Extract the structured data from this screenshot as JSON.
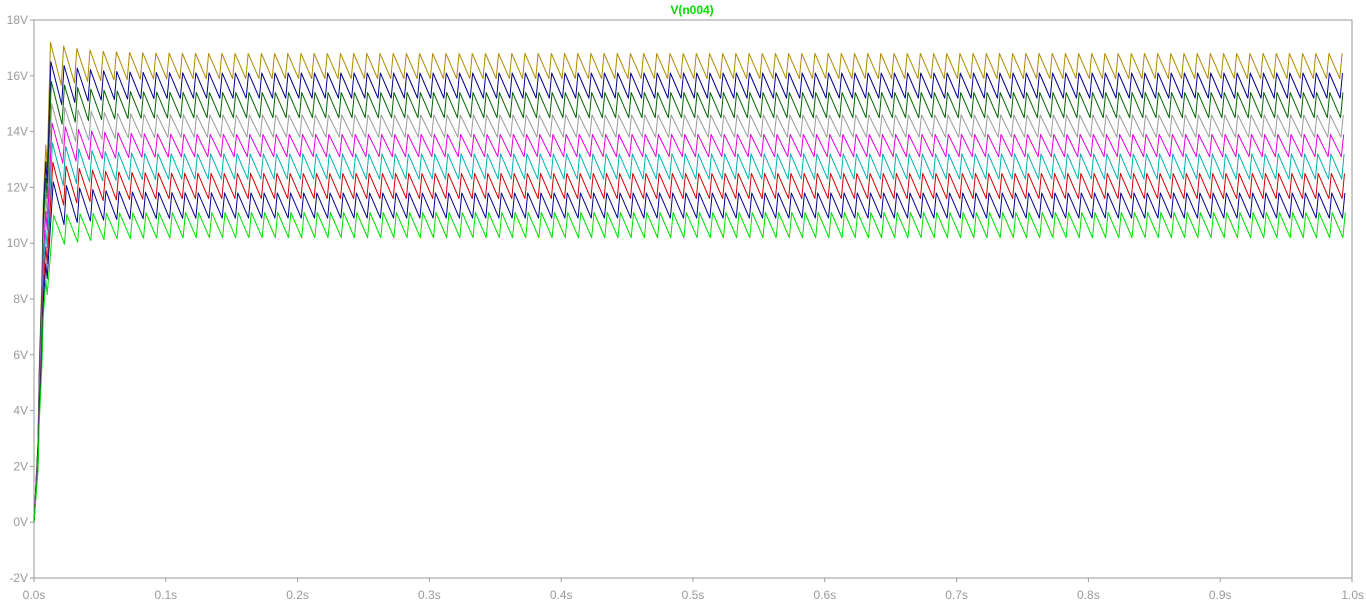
{
  "window": {
    "title": "V(n004)"
  },
  "colors": {
    "background": "#ffffff",
    "frame": "#9a9a9a",
    "tick_text": "#9a9a9a",
    "title": "#00e000"
  },
  "chart_data": {
    "type": "line",
    "title": "V(n004)",
    "xlabel": "",
    "ylabel": "",
    "xlim": [
      0,
      1.0
    ],
    "ylim": [
      -2,
      18
    ],
    "x_ticks": [
      0.0,
      0.1,
      0.2,
      0.3,
      0.4,
      0.5,
      0.6,
      0.7,
      0.8,
      0.9,
      1.0
    ],
    "x_tick_labels": [
      "0.0s",
      "0.1s",
      "0.2s",
      "0.3s",
      "0.4s",
      "0.5s",
      "0.6s",
      "0.7s",
      "0.8s",
      "0.9s",
      "1.0s"
    ],
    "y_ticks": [
      -2,
      0,
      2,
      4,
      6,
      8,
      10,
      12,
      14,
      16,
      18
    ],
    "y_tick_labels": [
      "-2V",
      "0V",
      "2V",
      "4V",
      "6V",
      "8V",
      "10V",
      "12V",
      "14V",
      "16V",
      "18V"
    ],
    "grid": false,
    "ripple_frequency_hz": 100,
    "series": [
      {
        "color": "#b08800",
        "steady_min": 15.9,
        "steady_max": 16.8,
        "overshoot_peak": 17.2
      },
      {
        "color": "#00008b",
        "steady_min": 15.2,
        "steady_max": 16.1,
        "overshoot_peak": 16.5
      },
      {
        "color": "#006400",
        "steady_min": 14.5,
        "steady_max": 15.4,
        "overshoot_peak": 15.8
      },
      {
        "color": "#999999",
        "steady_min": 13.8,
        "steady_max": 14.6,
        "overshoot_peak": 15.0
      },
      {
        "color": "#e000e0",
        "steady_min": 13.1,
        "steady_max": 13.9,
        "overshoot_peak": 14.3
      },
      {
        "color": "#00b0b0",
        "steady_min": 12.3,
        "steady_max": 13.2,
        "overshoot_peak": 13.6
      },
      {
        "color": "#d00000",
        "steady_min": 11.6,
        "steady_max": 12.5,
        "overshoot_peak": 12.9
      },
      {
        "color": "#000090",
        "steady_min": 10.9,
        "steady_max": 11.8,
        "overshoot_peak": 12.2
      },
      {
        "color": "#00e000",
        "steady_min": 10.2,
        "steady_max": 11.1,
        "overshoot_peak": 11.0
      }
    ]
  }
}
